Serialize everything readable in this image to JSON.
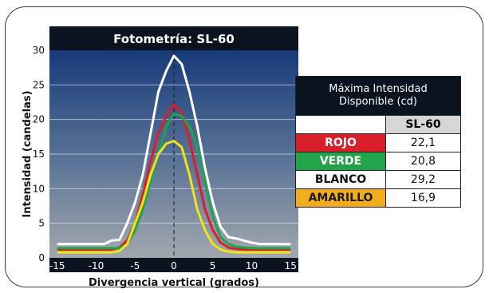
{
  "chart_data": {
    "type": "line",
    "title": "Fotometría: SL-60",
    "xlabel": "Divergencia vertical (grados)",
    "ylabel": "Intensidad (candelas)",
    "xlim": [
      -16,
      16
    ],
    "ylim": [
      0,
      30
    ],
    "xticks": [
      "-15",
      "-10",
      "-5",
      "0",
      "5",
      "10",
      "15"
    ],
    "yticks": [
      "0",
      "5",
      "10",
      "15",
      "20",
      "25",
      "30"
    ],
    "grid": true,
    "series": [
      {
        "name": "BLANCO",
        "color": "#ffffff",
        "x": [
          -15,
          -9,
          -8,
          -7,
          -6,
          -5,
          -4,
          -3,
          -2,
          -1,
          0,
          1,
          2,
          3,
          4,
          5,
          6,
          7,
          8,
          9,
          10,
          11,
          12,
          15
        ],
        "y": [
          2,
          2,
          2.5,
          2.6,
          5,
          8,
          12,
          18,
          24,
          27,
          29.2,
          28,
          24,
          19,
          13,
          8,
          4.5,
          3,
          2.8,
          2.5,
          2.2,
          2,
          2,
          2
        ]
      },
      {
        "name": "ROJO",
        "color": "#d81f2a",
        "x": [
          -15,
          -8,
          -7,
          -6,
          -5,
          -4,
          -3,
          -2,
          -1,
          0,
          1,
          2,
          3,
          4,
          5,
          6,
          7,
          8,
          9,
          12,
          15
        ],
        "y": [
          1.2,
          1.2,
          1.5,
          2.5,
          5,
          9,
          14,
          18,
          20.5,
          22.1,
          21,
          17,
          12,
          7,
          4,
          2.2,
          1.5,
          1.3,
          1.2,
          1.2,
          1.2
        ]
      },
      {
        "name": "VERDE",
        "color": "#21a34a",
        "x": [
          -15,
          -7,
          -6,
          -5,
          -4,
          -3,
          -2,
          -1,
          0,
          1,
          2,
          3,
          4,
          5,
          6,
          7,
          8,
          9,
          10,
          12,
          15
        ],
        "y": [
          1.4,
          1.4,
          2,
          4,
          7,
          11,
          15,
          19,
          20.8,
          20.5,
          19,
          16,
          11,
          6,
          3,
          2,
          1.6,
          1.5,
          1.4,
          1.4,
          1.4
        ]
      },
      {
        "name": "AMARILLO",
        "color": "#f2e21a",
        "x": [
          -15,
          -8,
          -7,
          -6,
          -5,
          -4,
          -3,
          -2,
          -1,
          0,
          1,
          2,
          3,
          4,
          5,
          6,
          7,
          8,
          10,
          12,
          15
        ],
        "y": [
          0.8,
          0.8,
          1,
          2,
          5,
          8,
          12,
          15,
          16.5,
          16.9,
          16,
          12,
          7,
          4,
          2,
          1.2,
          0.9,
          0.8,
          0.8,
          0.8,
          0.8
        ]
      }
    ]
  },
  "table": {
    "header_line1": "Máxima Intensidad",
    "header_line2": "Disponible (cd)",
    "column_label": "SL-60",
    "rows": [
      {
        "label": "ROJO",
        "value": "22,1",
        "bg": "#d81f2a",
        "fg": "#ffffff"
      },
      {
        "label": "VERDE",
        "value": "20,8",
        "bg": "#21a34a",
        "fg": "#ffffff"
      },
      {
        "label": "BLANCO",
        "value": "29,2",
        "bg": "#ffffff",
        "fg": "#111111"
      },
      {
        "label": "AMARILLO",
        "value": "16,9",
        "bg": "#f2ad1f",
        "fg": "#1a1a1a"
      }
    ]
  }
}
